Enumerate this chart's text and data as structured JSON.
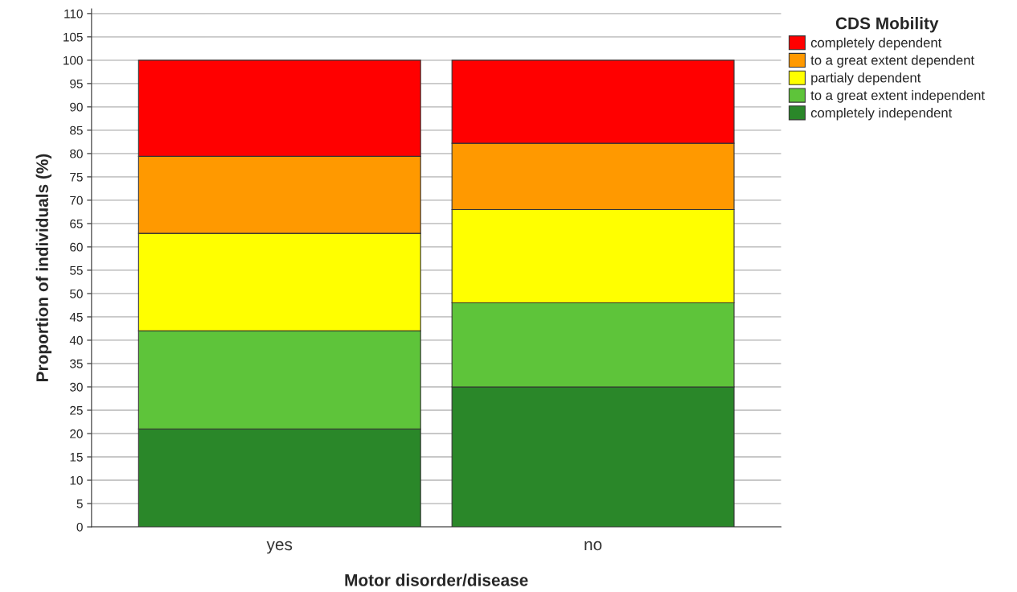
{
  "chart_data": {
    "type": "bar",
    "stacked": true,
    "xlabel": "Motor disorder/disease",
    "ylabel": "Proportion of individuals (%)",
    "legend_title": "CDS Mobility",
    "categories": [
      "yes",
      "no"
    ],
    "series": [
      {
        "name": "completely independent",
        "color": "#2a8729",
        "values": [
          21,
          30
        ]
      },
      {
        "name": "to a great extent independent",
        "color": "#5ec43a",
        "values": [
          21,
          18
        ]
      },
      {
        "name": "partialy dependent",
        "color": "#ffff00",
        "values": [
          20.9,
          20
        ]
      },
      {
        "name": "to a great extent dependent",
        "color": "#ff9900",
        "values": [
          16.5,
          14.2
        ]
      },
      {
        "name": "completely dependent",
        "color": "#ff0000",
        "values": [
          20.6,
          17.8
        ]
      }
    ],
    "ylim": [
      0,
      111
    ],
    "yticks": [
      0,
      5,
      10,
      15,
      20,
      25,
      30,
      35,
      40,
      45,
      50,
      55,
      60,
      65,
      70,
      75,
      80,
      85,
      90,
      95,
      100,
      105,
      110
    ],
    "grid": "y",
    "legend": "top right"
  }
}
